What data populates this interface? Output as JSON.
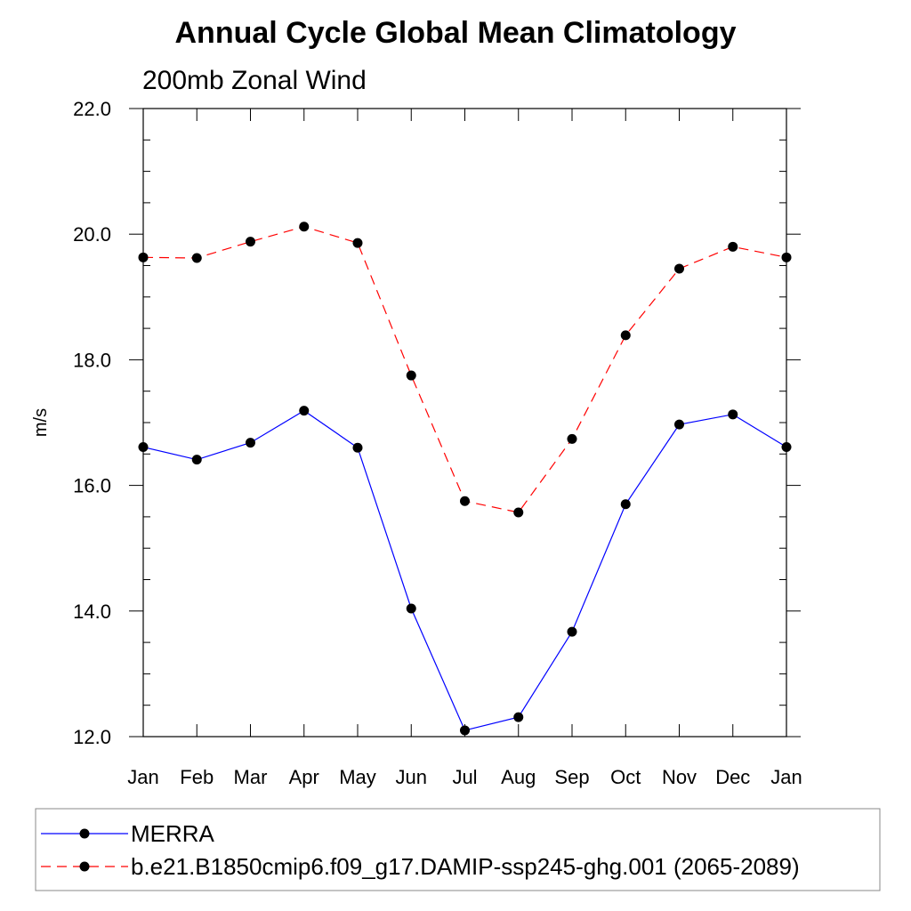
{
  "chart_data": {
    "type": "line",
    "title": "Annual Cycle Global Mean Climatology",
    "subtitle": "200mb Zonal Wind",
    "ylabel": "m/s",
    "xlabel": "",
    "categories": [
      "Jan",
      "Feb",
      "Mar",
      "Apr",
      "May",
      "Jun",
      "Jul",
      "Aug",
      "Sep",
      "Oct",
      "Nov",
      "Dec",
      "Jan"
    ],
    "ylim": [
      12.0,
      22.0
    ],
    "yticks": [
      "12.0",
      "14.0",
      "16.0",
      "18.0",
      "20.0",
      "22.0"
    ],
    "grid": false,
    "legend_position": "bottom",
    "series": [
      {
        "name": "MERRA",
        "color": "#0000ff",
        "dash": "solid",
        "marker": "filled-circle",
        "values": [
          16.61,
          16.41,
          16.68,
          17.19,
          16.6,
          14.04,
          12.1,
          12.31,
          13.67,
          15.7,
          16.97,
          17.13,
          16.61
        ]
      },
      {
        "name": "b.e21.B1850cmip6.f09_g17.DAMIP-ssp245-ghg.001 (2065-2089)",
        "color": "#ff0000",
        "dash": "dashed",
        "marker": "filled-circle",
        "values": [
          19.63,
          19.62,
          19.88,
          20.12,
          19.86,
          17.75,
          15.75,
          15.57,
          16.74,
          18.39,
          19.45,
          19.8,
          19.63
        ]
      }
    ]
  }
}
